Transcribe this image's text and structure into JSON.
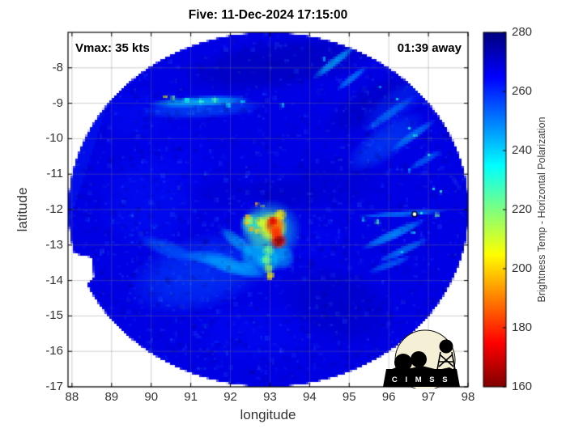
{
  "chart_data": {
    "type": "heatmap",
    "title": "Five: 11-Dec-2024 17:15:00",
    "xlabel": "longitude",
    "ylabel": "latitude",
    "xlim": [
      87.9,
      98.0
    ],
    "ylim": [
      -17,
      -7
    ],
    "xticks": [
      88,
      89,
      90,
      91,
      92,
      93,
      94,
      95,
      96,
      97,
      98
    ],
    "yticks": [
      -8,
      -9,
      -10,
      -11,
      -12,
      -13,
      -14,
      -15,
      -16,
      -17
    ],
    "grid": true,
    "annotations": {
      "vmax": "Vmax: 35 kts",
      "time_to_arrival": "01:39 away"
    },
    "colorbar": {
      "label": "Brightness Temp - Horizontal Polarization",
      "min": 160,
      "max": 280,
      "ticks": [
        280,
        260,
        240,
        220,
        200,
        180,
        160
      ],
      "colormap": "jet-reversed"
    },
    "swath": {
      "center_lon": 92.95,
      "center_lat": -12,
      "radius_lon_deg": 5.05,
      "radius_lat_deg": 5.0
    },
    "field": {
      "base_temp": 268,
      "regions_format": [
        "lon",
        "lat",
        "rx_deg",
        "ry_deg",
        "rot_deg",
        "temp_K",
        "alpha"
      ],
      "regions": [
        [
          93.2,
          -7.9,
          2.6,
          0.75,
          -8,
          274,
          0.65
        ],
        [
          95.6,
          -9.0,
          1.5,
          0.6,
          -30,
          274,
          0.5
        ],
        [
          94.6,
          -11.2,
          1.3,
          0.8,
          0,
          272,
          0.4
        ],
        [
          94.7,
          -14.7,
          1.6,
          1.1,
          20,
          273,
          0.55
        ],
        [
          93.3,
          -11.55,
          1.1,
          0.5,
          5,
          273,
          0.5
        ],
        [
          91.9,
          -11.5,
          0.9,
          0.45,
          0,
          272,
          0.35
        ],
        [
          91.2,
          -13.8,
          1.9,
          1.1,
          -15,
          256,
          0.6
        ],
        [
          89.9,
          -11.8,
          1.3,
          1.5,
          0,
          262,
          0.4
        ],
        [
          92.5,
          -15.5,
          1.7,
          0.9,
          0,
          263,
          0.35
        ],
        [
          89.6,
          -9.3,
          1.0,
          0.8,
          0,
          262,
          0.3
        ],
        [
          90.6,
          -10.6,
          1.2,
          1.2,
          0,
          264,
          0.3
        ],
        [
          95.9,
          -10.1,
          1.2,
          0.5,
          -35,
          252,
          0.45
        ],
        [
          96.2,
          -9.0,
          1.1,
          0.45,
          -35,
          258,
          0.45
        ],
        [
          94.2,
          -12.9,
          0.9,
          0.5,
          -10,
          264,
          0.35
        ]
      ],
      "streaks_format": [
        "lon",
        "lat",
        "half_len_deg",
        "half_w_deg",
        "rot_deg",
        "temp_K",
        "alpha"
      ],
      "streaks": [
        [
          91.3,
          -9.15,
          1.6,
          0.3,
          -3,
          250,
          0.5
        ],
        [
          91.2,
          -8.95,
          1.3,
          0.16,
          -3,
          240,
          0.75
        ],
        [
          94.6,
          -7.85,
          0.7,
          0.13,
          -38,
          243,
          0.8
        ],
        [
          95.05,
          -8.3,
          0.5,
          0.11,
          -38,
          246,
          0.7
        ],
        [
          96.0,
          -9.3,
          0.8,
          0.14,
          -35,
          248,
          0.6
        ],
        [
          96.6,
          -9.9,
          0.7,
          0.13,
          -35,
          245,
          0.6
        ],
        [
          96.9,
          -10.6,
          0.5,
          0.12,
          -30,
          247,
          0.55
        ],
        [
          96.3,
          -12.12,
          1.2,
          0.09,
          -4,
          247,
          0.7
        ],
        [
          96.1,
          -12.7,
          0.9,
          0.15,
          -25,
          243,
          0.7
        ],
        [
          96.35,
          -13.15,
          0.7,
          0.13,
          -25,
          245,
          0.6
        ],
        [
          96.0,
          -13.55,
          0.6,
          0.12,
          -20,
          246,
          0.5
        ],
        [
          92.1,
          -13.62,
          0.95,
          0.24,
          14,
          242,
          0.75
        ],
        [
          91.45,
          -13.35,
          0.7,
          0.2,
          4,
          246,
          0.6
        ],
        [
          92.15,
          -12.9,
          0.55,
          0.2,
          40,
          240,
          0.6
        ],
        [
          90.4,
          -13.1,
          0.8,
          0.25,
          20,
          250,
          0.5
        ]
      ],
      "features_format": [
        "lon",
        "lat",
        "radius_deg",
        "temp_K",
        "alpha"
      ],
      "features": [
        [
          93.0,
          -12.6,
          0.85,
          232,
          0.5
        ],
        [
          92.85,
          -12.55,
          0.6,
          224,
          0.55
        ],
        [
          92.95,
          -13.45,
          0.35,
          235,
          0.6
        ],
        [
          92.6,
          -13.3,
          0.4,
          238,
          0.6
        ],
        [
          93.3,
          -13.35,
          0.35,
          240,
          0.6
        ],
        [
          92.5,
          -12.4,
          0.3,
          228,
          0.6
        ],
        [
          92.95,
          -13.15,
          0.17,
          222,
          0.9
        ],
        [
          92.9,
          -13.42,
          0.15,
          220,
          0.9
        ],
        [
          92.95,
          -13.65,
          0.14,
          215,
          0.9
        ],
        [
          93.0,
          -13.85,
          0.12,
          207,
          0.9
        ],
        [
          92.98,
          -13.92,
          0.07,
          200,
          0.9
        ],
        [
          90.35,
          -8.82,
          0.07,
          205,
          0.85
        ],
        [
          90.55,
          -8.85,
          0.08,
          222,
          0.85
        ],
        [
          90.9,
          -8.9,
          0.09,
          232,
          0.85
        ],
        [
          91.25,
          -8.95,
          0.08,
          228,
          0.85
        ],
        [
          91.6,
          -8.9,
          0.09,
          225,
          0.85
        ],
        [
          91.95,
          -9.05,
          0.08,
          235,
          0.85
        ],
        [
          92.3,
          -8.95,
          0.07,
          238,
          0.85
        ],
        [
          93.3,
          -9.05,
          0.06,
          233,
          0.85
        ],
        [
          94.35,
          -7.75,
          0.06,
          240,
          0.85
        ],
        [
          96.5,
          -9.7,
          0.06,
          234,
          0.85
        ],
        [
          96.65,
          -9.9,
          0.05,
          228,
          0.85
        ],
        [
          97.0,
          -10.45,
          0.06,
          230,
          0.85
        ],
        [
          96.5,
          -10.9,
          0.05,
          240,
          0.85
        ],
        [
          97.3,
          -11.5,
          0.06,
          227,
          0.85
        ],
        [
          97.1,
          -11.42,
          0.05,
          232,
          0.85
        ],
        [
          96.8,
          -12.1,
          0.06,
          230,
          0.85
        ],
        [
          97.2,
          -12.15,
          0.07,
          222,
          0.85
        ],
        [
          95.7,
          -12.35,
          0.08,
          225,
          0.85
        ],
        [
          95.35,
          -12.28,
          0.06,
          238,
          0.85
        ],
        [
          96.6,
          -12.65,
          0.06,
          235,
          0.85
        ],
        [
          96.3,
          -13.2,
          0.05,
          237,
          0.85
        ],
        [
          96.2,
          -8.9,
          0.05,
          235,
          0.85
        ],
        [
          95.75,
          -8.55,
          0.05,
          240,
          0.85
        ],
        [
          93.05,
          -12.5,
          0.42,
          207,
          0.95
        ],
        [
          93.25,
          -12.15,
          0.18,
          203,
          0.95
        ],
        [
          92.75,
          -12.35,
          0.15,
          210,
          0.95
        ],
        [
          92.45,
          -12.3,
          0.16,
          215,
          0.9
        ],
        [
          93.1,
          -12.45,
          0.28,
          185,
          0.95
        ],
        [
          93.05,
          -12.33,
          0.14,
          172,
          0.95
        ],
        [
          93.15,
          -12.65,
          0.18,
          180,
          0.95
        ],
        [
          93.2,
          -12.88,
          0.24,
          178,
          0.95
        ],
        [
          93.2,
          -12.9,
          0.16,
          163,
          0.97
        ],
        [
          92.42,
          -12.2,
          0.08,
          195,
          0.92
        ],
        [
          92.4,
          -12.38,
          0.08,
          198,
          0.92
        ],
        [
          92.52,
          -12.55,
          0.09,
          195,
          0.92
        ],
        [
          92.66,
          -12.6,
          0.08,
          200,
          0.92
        ],
        [
          92.66,
          -11.85,
          0.06,
          196,
          0.92
        ],
        [
          92.8,
          -11.92,
          0.05,
          205,
          0.92
        ]
      ],
      "seam": {
        "points": [
          [
            90.05,
            -6.95
          ],
          [
            88.85,
            -9.2
          ],
          [
            88.15,
            -11.6
          ],
          [
            87.9,
            -12.6
          ],
          [
            87.9,
            -6.95
          ]
        ],
        "temp": 258,
        "alpha": 0.22
      },
      "notch": [
        [
          87.9,
          -13.2
        ],
        [
          88.5,
          -13.35
        ],
        [
          88.55,
          -13.9
        ],
        [
          88.2,
          -14.35
        ],
        [
          87.9,
          -14.35
        ]
      ],
      "marker": {
        "lon": 96.65,
        "lat": -12.13
      }
    }
  },
  "logo": {
    "text": "C I M S S"
  },
  "colors": {
    "background": "#ffffff",
    "frame": "#000000",
    "grid": "#787878",
    "tick_label": "#333333",
    "title": "#000000",
    "annotation": "#000000",
    "logo_cream": "#f5efd5",
    "logo_ink": "#000000"
  }
}
